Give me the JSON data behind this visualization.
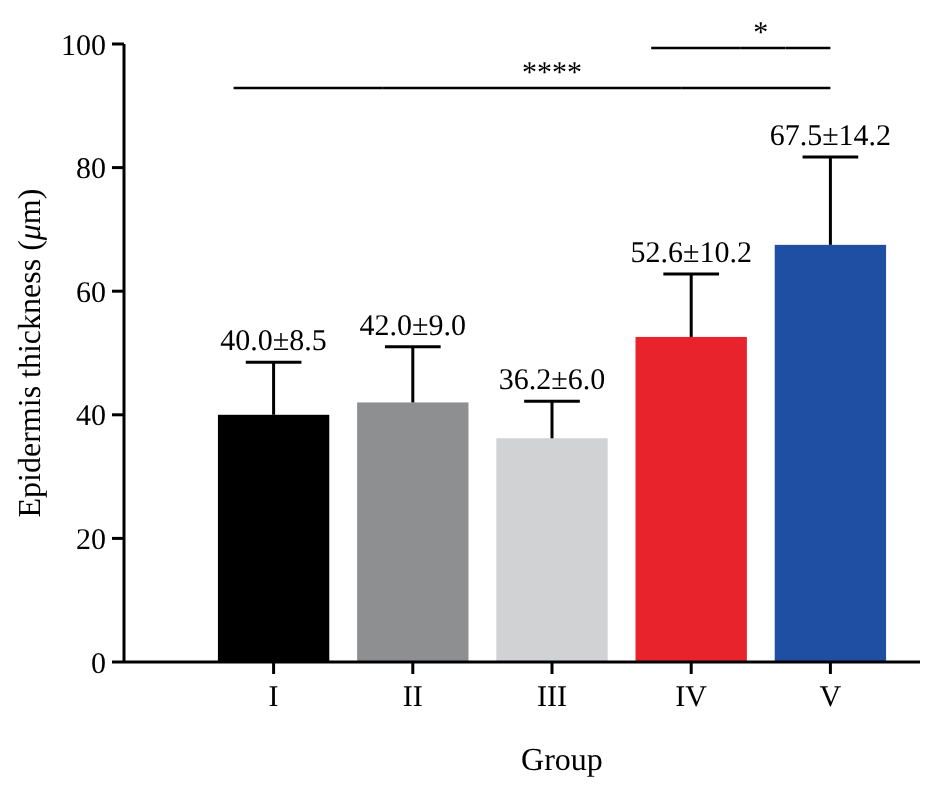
{
  "chart_data": {
    "type": "bar",
    "xlabel": "Group",
    "ylabel": "Epidermis thickness (μm)",
    "categories": [
      "I",
      "II",
      "III",
      "IV",
      "V"
    ],
    "values": [
      40.0,
      42.0,
      36.2,
      52.6,
      67.5
    ],
    "colors": [
      "#000000",
      "#8e8f91",
      "#d1d2d4",
      "#e8232b",
      "#1f4fa3"
    ],
    "errors": [
      [
        40.0,
        48.5
      ],
      [
        42.0,
        51.0
      ],
      [
        36.2,
        42.2
      ],
      [
        52.6,
        62.8
      ],
      [
        67.5,
        81.7
      ]
    ],
    "value_labels": [
      "40.0±8.5",
      "42.0±9.0",
      "36.2±6.0",
      "52.6±10.2",
      "67.5±14.2"
    ],
    "ylim": [
      0,
      100
    ],
    "yticks": [
      0,
      20,
      40,
      60,
      80,
      100
    ],
    "annotations": [
      "****",
      "*"
    ]
  }
}
